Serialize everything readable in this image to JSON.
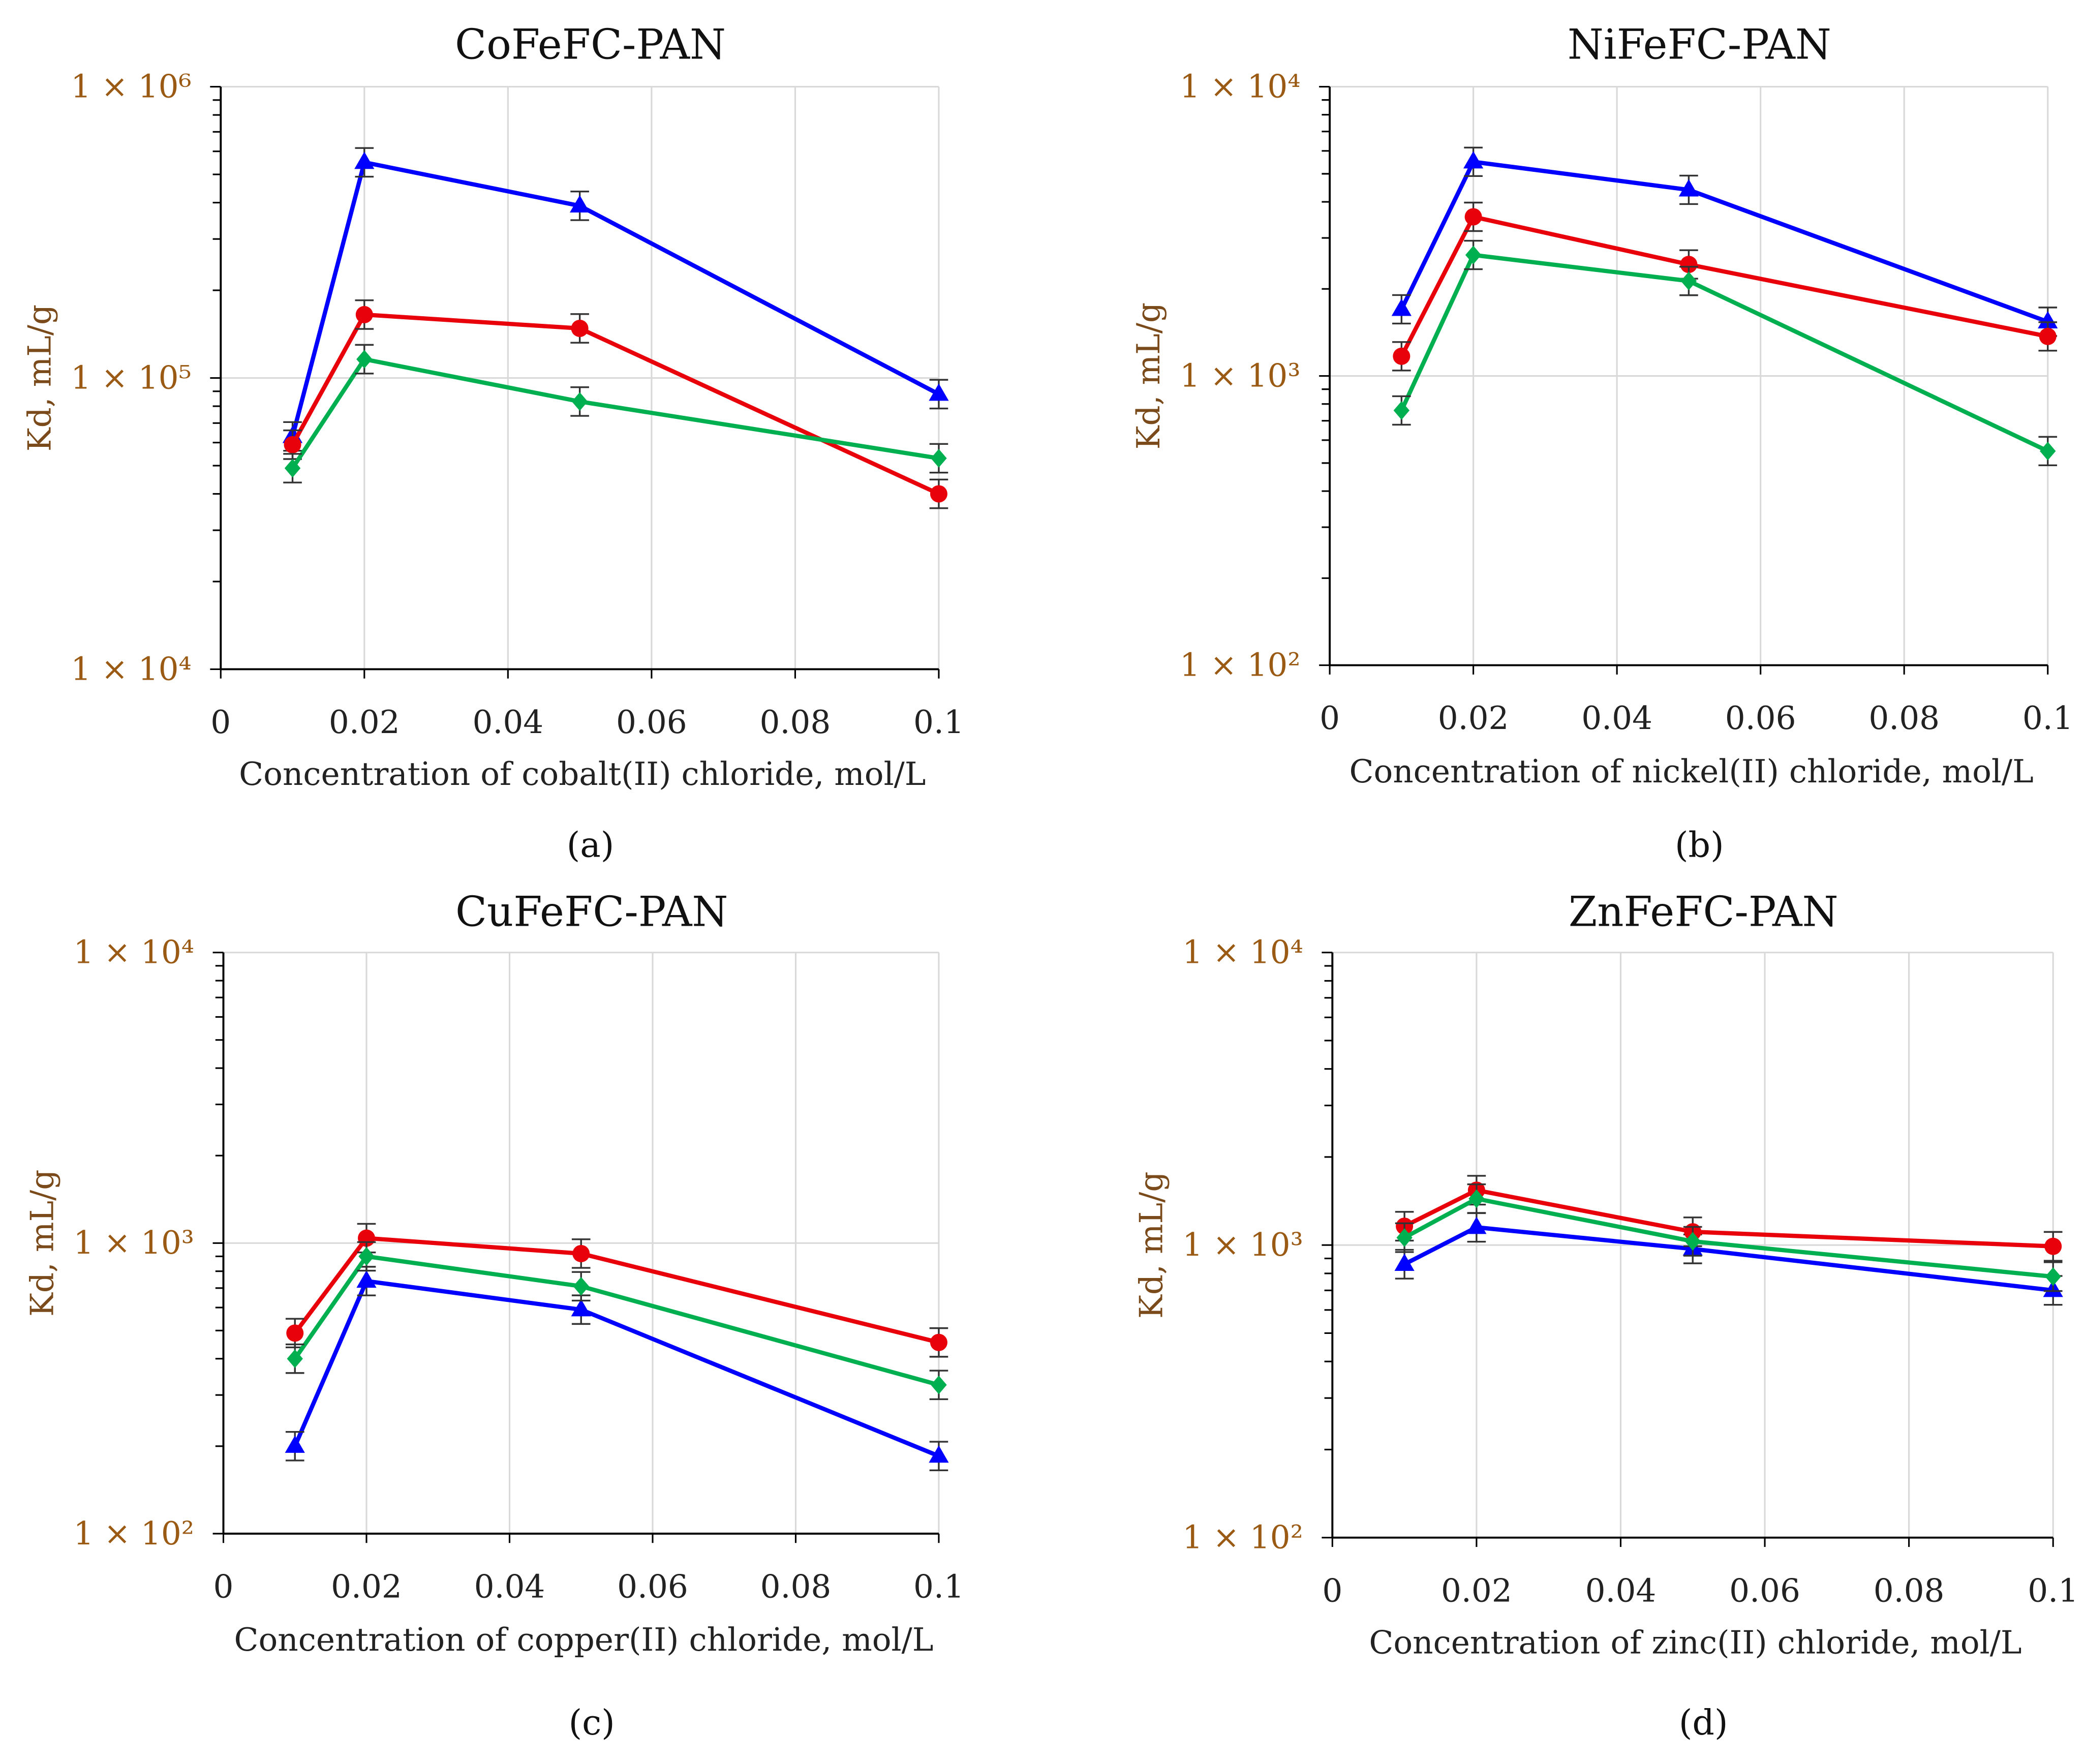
{
  "chart_data": [
    {
      "type": "line",
      "panel": "(a)",
      "title": "CoFeFC-PAN",
      "xlabel": "Concentration of cobalt(II) chloride, mol/L",
      "ylabel": "Kd, mL/g",
      "yscale": "log",
      "xlim": [
        0,
        0.1
      ],
      "ylim": [
        10000,
        1000000
      ],
      "xticks": [
        0,
        0.02,
        0.04,
        0.06,
        0.08,
        0.1
      ],
      "xtick_labels": [
        "0",
        "0.02",
        "0.04",
        "0.06",
        "0.08",
        "0.1"
      ],
      "yticks": [
        10000,
        100000,
        1000000
      ],
      "ytick_labels": [
        "1 × 10⁴",
        "1 × 10⁵",
        "1 × 10⁶"
      ],
      "x": [
        0.01,
        0.02,
        0.05,
        0.1
      ],
      "series": [
        {
          "color": "#0000ff",
          "marker": "triangle",
          "values": [
            63000,
            550000,
            390000,
            88000
          ]
        },
        {
          "color": "#e8000b",
          "marker": "circle",
          "values": [
            59000,
            165000,
            148000,
            40000
          ]
        },
        {
          "color": "#00b050",
          "marker": "diamond",
          "values": [
            49000,
            116000,
            83000,
            53000
          ]
        }
      ],
      "grid": true,
      "error_bars": "approx ±10%"
    },
    {
      "type": "line",
      "panel": "(b)",
      "title": "NiFeFC-PAN",
      "xlabel": "Concentration of nickel(II) chloride, mol/L",
      "ylabel": "Kd, mL/g",
      "yscale": "log",
      "xlim": [
        0,
        0.1
      ],
      "ylim": [
        100,
        10000
      ],
      "xticks": [
        0,
        0.02,
        0.04,
        0.06,
        0.08,
        0.1
      ],
      "xtick_labels": [
        "0",
        "0.02",
        "0.04",
        "0.06",
        "0.08",
        "0.1"
      ],
      "yticks": [
        100,
        1000,
        10000
      ],
      "ytick_labels": [
        "1 × 10²",
        "1 × 10³",
        "1 × 10⁴"
      ],
      "x": [
        0.01,
        0.02,
        0.05,
        0.1
      ],
      "series": [
        {
          "color": "#0000ff",
          "marker": "triangle",
          "values": [
            1700,
            5500,
            4400,
            1540
          ]
        },
        {
          "color": "#e8000b",
          "marker": "circle",
          "values": [
            1170,
            3550,
            2430,
            1370
          ]
        },
        {
          "color": "#00b050",
          "marker": "diamond",
          "values": [
            760,
            2620,
            2130,
            550
          ]
        }
      ],
      "grid": true,
      "error_bars": "approx ±10%"
    },
    {
      "type": "line",
      "panel": "(c)",
      "title": "CuFeFC-PAN",
      "xlabel": "Concentration of copper(II) chloride, mol/L",
      "ylabel": "Kd, mL/g",
      "yscale": "log",
      "xlim": [
        0,
        0.1
      ],
      "ylim": [
        100,
        10000
      ],
      "xticks": [
        0,
        0.02,
        0.04,
        0.06,
        0.08,
        0.1
      ],
      "xtick_labels": [
        "0",
        "0.02",
        "0.04",
        "0.06",
        "0.08",
        "0.1"
      ],
      "yticks": [
        100,
        1000,
        10000
      ],
      "ytick_labels": [
        "1 × 10²",
        "1 × 10³",
        "1 × 10⁴"
      ],
      "x": [
        0.01,
        0.02,
        0.05,
        0.1
      ],
      "series": [
        {
          "color": "#0000ff",
          "marker": "triangle",
          "values": [
            200,
            740,
            590,
            185
          ]
        },
        {
          "color": "#e8000b",
          "marker": "circle",
          "values": [
            490,
            1040,
            920,
            455
          ]
        },
        {
          "color": "#00b050",
          "marker": "diamond",
          "values": [
            400,
            900,
            710,
            325
          ]
        }
      ],
      "grid": true,
      "error_bars": "approx ±10%"
    },
    {
      "type": "line",
      "panel": "(d)",
      "title": "ZnFeFC-PAN",
      "xlabel": "Concentration of zinc(II) chloride, mol/L",
      "ylabel": "Kd, mL/g",
      "yscale": "log",
      "xlim": [
        0,
        0.1
      ],
      "ylim": [
        100,
        10000
      ],
      "xticks": [
        0,
        0.02,
        0.04,
        0.06,
        0.08,
        0.1
      ],
      "xtick_labels": [
        "0",
        "0.02",
        "0.04",
        "0.06",
        "0.08",
        "0.1"
      ],
      "yticks": [
        100,
        1000,
        10000
      ],
      "ytick_labels": [
        "1 × 10²",
        "1 × 10³",
        "1 × 10⁴"
      ],
      "x": [
        0.01,
        0.02,
        0.05,
        0.1
      ],
      "series": [
        {
          "color": "#0000ff",
          "marker": "triangle",
          "values": [
            860,
            1150,
            970,
            700
          ]
        },
        {
          "color": "#e8000b",
          "marker": "circle",
          "values": [
            1160,
            1540,
            1110,
            990
          ]
        },
        {
          "color": "#00b050",
          "marker": "diamond",
          "values": [
            1060,
            1440,
            1030,
            780
          ]
        }
      ],
      "grid": true,
      "error_bars": "approx ±10%"
    }
  ]
}
